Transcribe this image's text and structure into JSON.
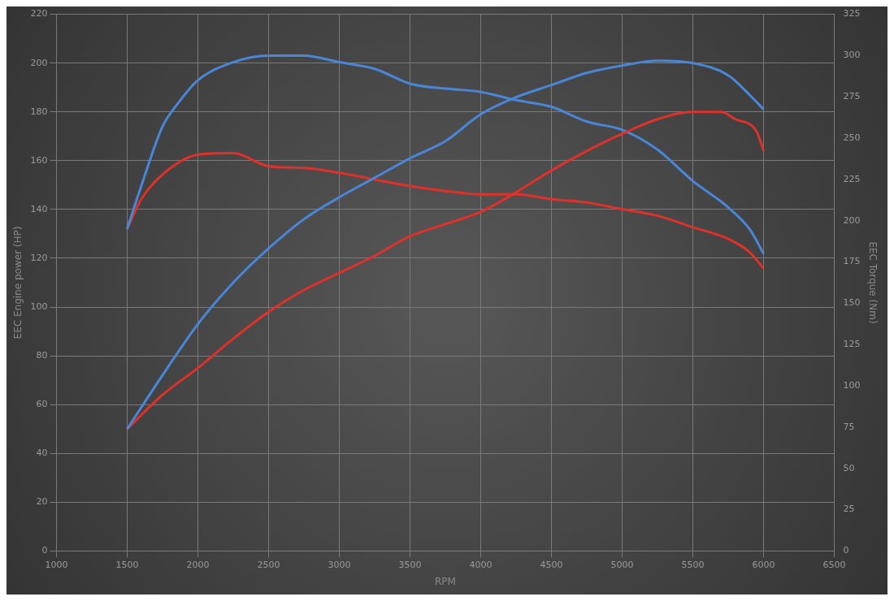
{
  "chart_data": {
    "type": "line",
    "xlabel": "RPM",
    "ylabel": "EEC Engine power (HP)",
    "y2label": "EEC Torque (Nm)",
    "xlim": [
      1000,
      6500
    ],
    "xticks": [
      1000,
      1500,
      2000,
      2500,
      3000,
      3500,
      4000,
      4500,
      5000,
      5500,
      6000,
      6500
    ],
    "ylim": [
      0,
      220
    ],
    "yticks": [
      0,
      20,
      40,
      60,
      80,
      100,
      120,
      140,
      160,
      180,
      200,
      220
    ],
    "y2lim": [
      0,
      325
    ],
    "y2ticks": [
      0,
      25,
      50,
      75,
      100,
      125,
      150,
      175,
      200,
      225,
      250,
      275,
      300,
      325
    ],
    "grid": true,
    "legend": false,
    "marker": "none",
    "line_style": "solid",
    "series": [
      {
        "color": "#4a86d8",
        "x": [
          1500,
          1750,
          2000,
          2250,
          2500,
          2750,
          3000,
          3250,
          3500,
          3750,
          4000,
          4250,
          4500,
          4750,
          5000,
          5250,
          5500,
          5750,
          5900,
          6000
        ],
        "values": [
          50,
          72,
          93,
          110,
          124,
          136,
          145,
          153,
          161,
          168,
          179,
          186,
          191,
          196,
          199,
          201,
          200,
          195,
          187,
          181
        ]
      },
      {
        "color": "#e0302a",
        "x": [
          1500,
          1750,
          2000,
          2250,
          2500,
          2750,
          3000,
          3250,
          3500,
          3750,
          4000,
          4250,
          4500,
          4750,
          5000,
          5250,
          5500,
          5700,
          5800,
          5950,
          6000
        ],
        "values": [
          50,
          64,
          75,
          87,
          98,
          107,
          114,
          121,
          129,
          134,
          139,
          147,
          156,
          164,
          171,
          177,
          180,
          180,
          177,
          172,
          164
        ]
      },
      {
        "color": "#4a86d8",
        "axis": "y2",
        "x": [
          1500,
          1600,
          1750,
          1850,
          2000,
          2250,
          2500,
          2750,
          3000,
          3250,
          3500,
          3750,
          4000,
          4250,
          4500,
          4750,
          5000,
          5250,
          5500,
          5750,
          5900,
          6000
        ],
        "values": [
          195,
          221,
          257,
          270,
          285,
          296,
          300,
          300,
          296,
          292,
          283,
          280,
          278,
          273,
          269,
          260,
          255,
          243,
          224,
          208,
          195,
          180
        ]
      },
      {
        "color": "#e0302a",
        "axis": "y2",
        "x": [
          1500,
          1600,
          1750,
          2000,
          2250,
          2500,
          2750,
          3000,
          3250,
          3500,
          3750,
          4000,
          4250,
          4500,
          4750,
          5000,
          5250,
          5500,
          5750,
          5900,
          6000
        ],
        "values": [
          195,
          213,
          228,
          240,
          241,
          233,
          232,
          229,
          225,
          221,
          218,
          216,
          216,
          213,
          211,
          207,
          203,
          196,
          189,
          181,
          171
        ]
      }
    ]
  }
}
